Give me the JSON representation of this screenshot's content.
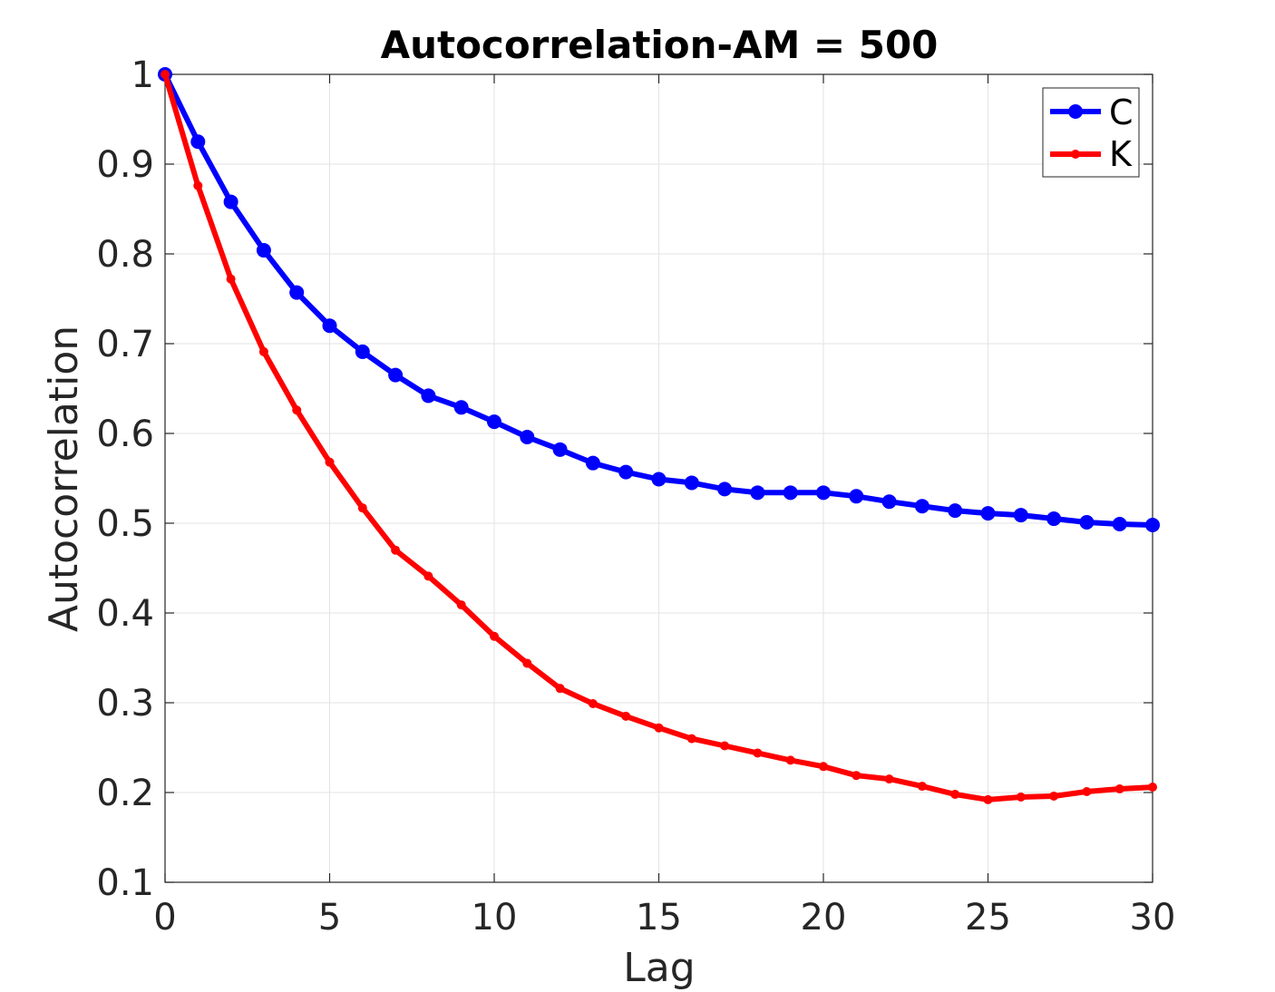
{
  "chart_data": {
    "type": "line",
    "title": "Autocorrelation-AM = 500",
    "xlabel": "Lag",
    "ylabel": "Autocorrelation",
    "xlim": [
      0,
      30
    ],
    "ylim": [
      0.1,
      1
    ],
    "xticks": [
      "0",
      "5",
      "10",
      "15",
      "20",
      "25",
      "30"
    ],
    "yticks": [
      "0.1",
      "0.2",
      "0.3",
      "0.4",
      "0.5",
      "0.6",
      "0.7",
      "0.8",
      "0.9",
      "1"
    ],
    "grid": true,
    "legend_position": "top-right",
    "x": [
      0,
      1,
      2,
      3,
      4,
      5,
      6,
      7,
      8,
      9,
      10,
      11,
      12,
      13,
      14,
      15,
      16,
      17,
      18,
      19,
      20,
      21,
      22,
      23,
      24,
      25,
      26,
      27,
      28,
      29,
      30
    ],
    "series": [
      {
        "name": "C",
        "color": "#0000ff",
        "marker": "large-dot",
        "values": [
          1.0,
          0.925,
          0.858,
          0.804,
          0.757,
          0.72,
          0.691,
          0.665,
          0.642,
          0.629,
          0.613,
          0.596,
          0.582,
          0.567,
          0.557,
          0.549,
          0.545,
          0.538,
          0.534,
          0.534,
          0.534,
          0.53,
          0.524,
          0.519,
          0.514,
          0.511,
          0.509,
          0.505,
          0.501,
          0.499,
          0.498
        ]
      },
      {
        "name": "K",
        "color": "#ff0000",
        "marker": "small-dot",
        "values": [
          1.0,
          0.876,
          0.772,
          0.691,
          0.626,
          0.568,
          0.517,
          0.47,
          0.441,
          0.409,
          0.374,
          0.344,
          0.316,
          0.299,
          0.285,
          0.272,
          0.26,
          0.252,
          0.244,
          0.236,
          0.229,
          0.219,
          0.215,
          0.207,
          0.198,
          0.192,
          0.195,
          0.196,
          0.201,
          0.204,
          0.206
        ]
      }
    ]
  }
}
